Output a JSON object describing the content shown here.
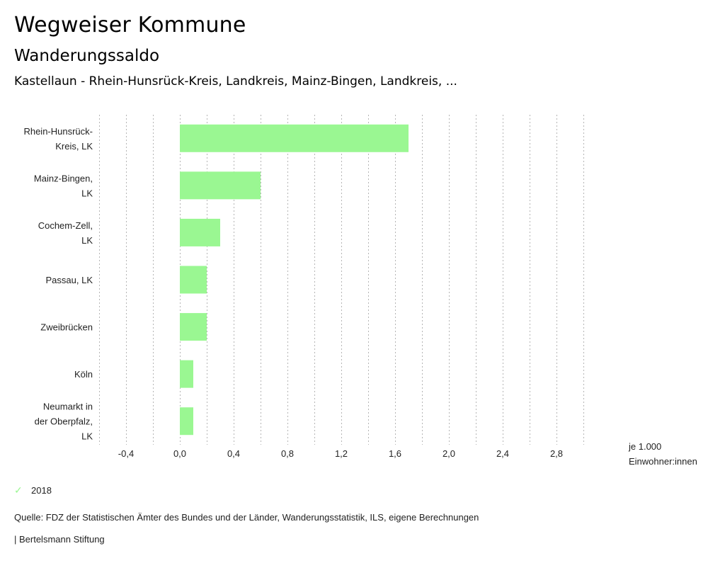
{
  "header": {
    "title": "Wegweiser Kommune",
    "subtitle": "Wanderungssaldo",
    "region": "Kastellaun - Rhein-Hunsrück-Kreis, Landkreis, Mainz-Bingen, Landkreis, ..."
  },
  "chart_data": {
    "type": "bar",
    "orientation": "horizontal",
    "title": "Wanderungssaldo",
    "categories": [
      [
        "Rhein-Hunsrück-",
        "Kreis, LK"
      ],
      [
        "Mainz-Bingen,",
        "LK"
      ],
      [
        "Cochem-Zell,",
        "LK"
      ],
      [
        "Passau, LK"
      ],
      [
        "Zweibrücken"
      ],
      [
        "Köln"
      ],
      [
        "Neumarkt in",
        "der Oberpfalz,",
        "LK"
      ]
    ],
    "series": [
      {
        "name": "2018",
        "color": "#9af792",
        "values": [
          1.7,
          0.6,
          0.3,
          0.2,
          0.2,
          0.1,
          0.1
        ]
      }
    ],
    "xlim": [
      -0.6,
      3.0
    ],
    "grid_step": 0.2,
    "tick_values": [
      -0.4,
      0.0,
      0.4,
      0.8,
      1.2,
      1.6,
      2.0,
      2.4,
      2.8
    ],
    "tick_labels": [
      "-0,4",
      "0,0",
      "0,4",
      "0,8",
      "1,2",
      "1,6",
      "2,0",
      "2,4",
      "2,8"
    ],
    "xlabel": [
      "je 1.000",
      "Einwohner:innen"
    ],
    "grid": true,
    "legend_position": "bottom-left"
  },
  "legend": {
    "items": [
      {
        "label": "2018",
        "color": "#9af792",
        "icon": "check-icon"
      }
    ]
  },
  "footer": {
    "source": "Quelle: FDZ der Statistischen Ämter des Bundes und der Länder, Wanderungsstatistik, ILS, eigene Berechnungen",
    "publisher": "| Bertelsmann Stiftung"
  }
}
